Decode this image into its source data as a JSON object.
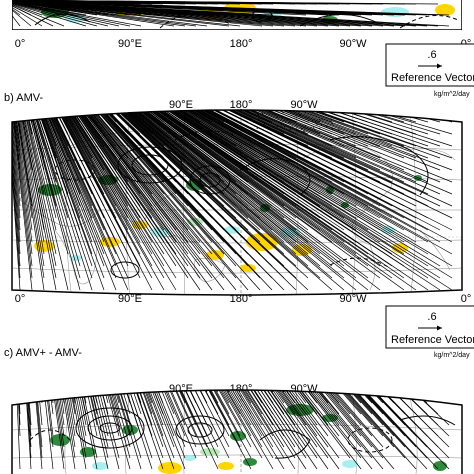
{
  "colors": {
    "land_green": "#2e8b3d",
    "precip_yellow": "#ffd400",
    "light_cyan": "#a8f0f0",
    "light_green": "#b8e8b8",
    "ink": "#000000"
  },
  "panels": [
    {
      "id": "a",
      "title": "",
      "top_lon_labels": [],
      "bottom_lon_labels": [
        "0°",
        "90°E",
        "180°",
        "90°W",
        "0°"
      ],
      "reference": {
        "value": ".6",
        "label": "Reference Vector",
        "unit": "kg/m^2/day"
      }
    },
    {
      "id": "b",
      "title": "b) AMV-",
      "top_lon_labels": [
        "90°E",
        "180°",
        "90°W"
      ],
      "bottom_lon_labels": [
        "0°",
        "90°E",
        "180°",
        "90°W",
        "0°"
      ],
      "reference": {
        "value": ".6",
        "label": "Reference Vector",
        "unit": "kg/m^2/day"
      }
    },
    {
      "id": "c",
      "title": "c) AMV+ - AMV-",
      "top_lon_labels": [
        "90°E",
        "180°",
        "90°W"
      ],
      "bottom_lon_labels": [],
      "reference": null
    }
  ]
}
